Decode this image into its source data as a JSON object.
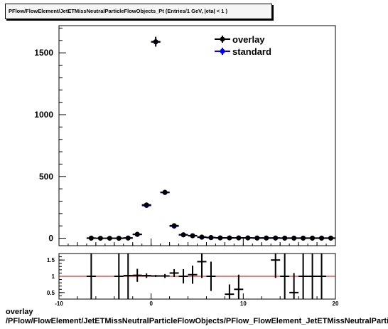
{
  "title": "PFlow/FlowElement/JetETMissNeutralParticleFlowObjects_Pt (Entries/1 GeV, |eta| < 1 )",
  "xlabel_line1": "overlay",
  "xlabel_line2": "/PFlow/FlowElement/JetETMissNeutralParticleFlowObjects/PFlow_FlowElement_JetETMissNeutralParticleFlowObjects_Pt",
  "colors": {
    "overlay": "#000000",
    "standard": "#0000ff",
    "ratio_line": "#cc0000",
    "axis": "#000000"
  },
  "chart_data": [
    {
      "type": "scatter",
      "name": "main",
      "xlim": [
        -10,
        20
      ],
      "ylim": [
        -60,
        1720
      ],
      "yticks": [
        0,
        500,
        1000,
        1500
      ],
      "xticks": [
        -10,
        0,
        10,
        20
      ],
      "legend": {
        "placement": "top-right",
        "entries": [
          "overlay",
          "standard"
        ]
      },
      "series": [
        {
          "name": "overlay",
          "points": [
            {
              "x": -6.5,
              "y": 1
            },
            {
              "x": -5.5,
              "y": 0
            },
            {
              "x": -4.5,
              "y": 0
            },
            {
              "x": -3.5,
              "y": 0
            },
            {
              "x": -2.5,
              "y": 2
            },
            {
              "x": -1.5,
              "y": 32
            },
            {
              "x": -0.5,
              "y": 270
            },
            {
              "x": 0.5,
              "y": 1590
            },
            {
              "x": 1.5,
              "y": 372
            },
            {
              "x": 2.5,
              "y": 102
            },
            {
              "x": 3.5,
              "y": 28
            },
            {
              "x": 4.5,
              "y": 21
            },
            {
              "x": 5.5,
              "y": 10
            },
            {
              "x": 6.5,
              "y": 6
            },
            {
              "x": 7.5,
              "y": 3
            },
            {
              "x": 8.5,
              "y": 3
            },
            {
              "x": 9.5,
              "y": 3
            },
            {
              "x": 10.5,
              "y": 3
            },
            {
              "x": 11.5,
              "y": 2
            },
            {
              "x": 12.5,
              "y": 2
            },
            {
              "x": 13.5,
              "y": 2
            },
            {
              "x": 14.5,
              "y": 1
            },
            {
              "x": 15.5,
              "y": 1
            },
            {
              "x": 16.5,
              "y": 1
            },
            {
              "x": 17.5,
              "y": 1
            },
            {
              "x": 18.5,
              "y": 1
            },
            {
              "x": 19.5,
              "y": 1
            }
          ]
        },
        {
          "name": "standard",
          "points": [
            {
              "x": -6.5,
              "y": 1
            },
            {
              "x": -3.5,
              "y": 0
            },
            {
              "x": -2.5,
              "y": 2
            },
            {
              "x": -1.5,
              "y": 31
            },
            {
              "x": -0.5,
              "y": 265
            },
            {
              "x": 0.5,
              "y": 1588
            },
            {
              "x": 1.5,
              "y": 370
            },
            {
              "x": 2.5,
              "y": 98
            },
            {
              "x": 3.5,
              "y": 28
            },
            {
              "x": 4.5,
              "y": 20
            },
            {
              "x": 5.5,
              "y": 8
            },
            {
              "x": 6.5,
              "y": 5
            },
            {
              "x": 7.5,
              "y": 3
            },
            {
              "x": 8.5,
              "y": 3
            },
            {
              "x": 9.5,
              "y": 3
            },
            {
              "x": 10.5,
              "y": 3
            },
            {
              "x": 11.5,
              "y": 2
            },
            {
              "x": 12.5,
              "y": 2
            },
            {
              "x": 13.5,
              "y": 2
            },
            {
              "x": 14.5,
              "y": 1
            },
            {
              "x": 15.5,
              "y": 1
            },
            {
              "x": 16.5,
              "y": 1
            },
            {
              "x": 17.5,
              "y": 1
            },
            {
              "x": 18.5,
              "y": 1
            },
            {
              "x": 19.5,
              "y": 1
            }
          ]
        }
      ]
    },
    {
      "type": "scatter",
      "name": "ratio",
      "xlim": [
        -10,
        20
      ],
      "ylim": [
        0.3,
        1.7
      ],
      "yticks": [
        0.5,
        1,
        1.5
      ],
      "xticks": [
        -10,
        0,
        10,
        20
      ],
      "reference_line": 1,
      "points": [
        {
          "x": -6.5,
          "y": 1.0,
          "err": 0.8
        },
        {
          "x": -3.5,
          "y": 1.0,
          "err": 0.8
        },
        {
          "x": -2.5,
          "y": 1.02,
          "err": 0.8
        },
        {
          "x": -1.5,
          "y": 1.03,
          "err": 0.2
        },
        {
          "x": -0.5,
          "y": 1.02,
          "err": 0.07
        },
        {
          "x": 0.5,
          "y": 1.01,
          "err": 0.03
        },
        {
          "x": 1.5,
          "y": 1.01,
          "err": 0.06
        },
        {
          "x": 2.5,
          "y": 1.1,
          "err": 0.12
        },
        {
          "x": 3.5,
          "y": 1.0,
          "err": 0.22
        },
        {
          "x": 4.5,
          "y": 1.05,
          "err": 0.28
        },
        {
          "x": 5.5,
          "y": 1.45,
          "err": 0.5
        },
        {
          "x": 6.5,
          "y": 1.0,
          "err": 0.45
        },
        {
          "x": 8.5,
          "y": 0.45,
          "err": 0.3
        },
        {
          "x": 9.5,
          "y": 0.6,
          "err": 0.45
        },
        {
          "x": 13.5,
          "y": 1.5,
          "err": 0.55
        },
        {
          "x": 14.5,
          "y": 1.0,
          "err": 0.8
        },
        {
          "x": 15.5,
          "y": 0.5,
          "err": 0.6
        },
        {
          "x": 16.5,
          "y": 1.0,
          "err": 0.8
        },
        {
          "x": 17.5,
          "y": 1.0,
          "err": 0.8
        },
        {
          "x": 18.5,
          "y": 1.0,
          "err": 0.8
        }
      ]
    }
  ]
}
